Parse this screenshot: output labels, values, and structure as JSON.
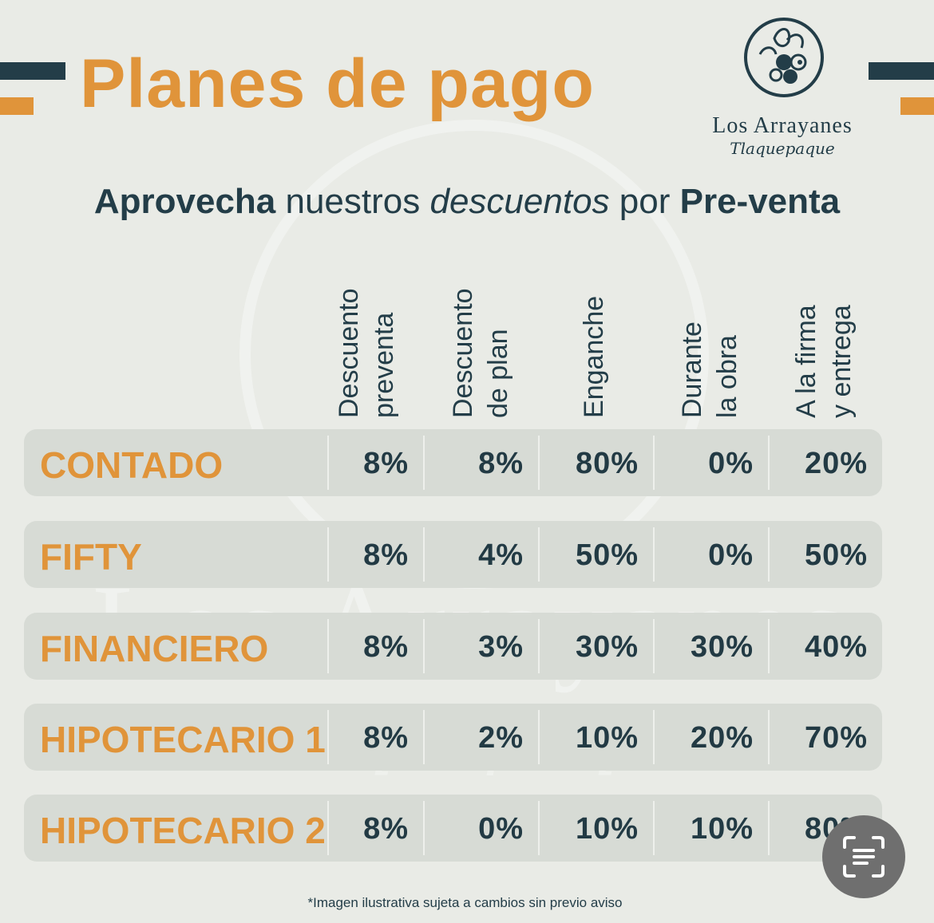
{
  "title": "Planes de pago",
  "brand": {
    "name": "Los Arrayanes",
    "location": "Tlaquepaque"
  },
  "subtitle": {
    "part1": "Aprovecha",
    "part2": " nuestros ",
    "part3": "descuentos",
    "part4": " por ",
    "part5": "Pre-venta"
  },
  "columns": [
    {
      "line1": "Descuento",
      "line2": "preventa"
    },
    {
      "line1": "Descuento",
      "line2": "de plan"
    },
    {
      "line1": "Enganche",
      "line2": ""
    },
    {
      "line1": "Durante",
      "line2": "la obra"
    },
    {
      "line1": "A la firma",
      "line2": "y entrega"
    }
  ],
  "rows": [
    {
      "name": "CONTADO",
      "values": [
        "8%",
        "8%",
        "80%",
        "0%",
        "20%"
      ]
    },
    {
      "name": "FIFTY",
      "values": [
        "8%",
        "4%",
        "50%",
        "0%",
        "50%"
      ]
    },
    {
      "name": "FINANCIERO",
      "values": [
        "8%",
        "3%",
        "30%",
        "30%",
        "40%"
      ]
    },
    {
      "name": "HIPOTECARIO 1",
      "values": [
        "8%",
        "2%",
        "10%",
        "20%",
        "70%"
      ]
    },
    {
      "name": "HIPOTECARIO 2",
      "values": [
        "8%",
        "0%",
        "10%",
        "10%",
        "80%"
      ]
    }
  ],
  "footnote": "*Imagen ilustrativa sujeta a cambios sin previo aviso",
  "colors": {
    "accent": "#e0943a",
    "dark": "#233d48",
    "row_bg": "#d7dbd5",
    "page_bg": "#e9ebe6"
  },
  "overlay_button": {
    "icon": "text-scan-icon"
  }
}
